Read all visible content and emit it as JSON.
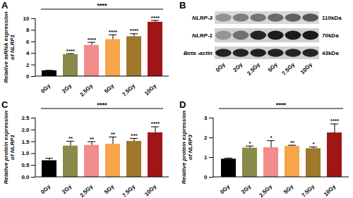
{
  "chart_data": [
    {
      "type": "bar",
      "title": "A",
      "y_label": "Relative mRNA expression\nof NLRP1",
      "categories": [
        "0Gy",
        "2Gy",
        "2.5Gy",
        "5Gy",
        "7.5Gy",
        "10Gy"
      ],
      "values": [
        1,
        3.8,
        5.4,
        6.4,
        6.9,
        9.4
      ],
      "errors": [
        0.05,
        0.15,
        0.5,
        0.8,
        0.5,
        0.3
      ],
      "colors": [
        "#000000",
        "#8a8a4a",
        "#f28b8b",
        "#f7a54a",
        "#a0782c",
        "#a01515"
      ],
      "annotations": [
        null,
        "****",
        "****",
        "****",
        "****",
        "****"
      ],
      "bracket_label": "****",
      "ylim": [
        0,
        10
      ],
      "yticks": [
        0,
        2,
        4,
        6,
        8,
        10
      ]
    },
    {
      "type": "bar",
      "title": "C",
      "y_label": "Relative protein expression\nof  NLRP1",
      "categories": [
        "0Gy",
        "2Gy",
        "2.5Gy",
        "5Gy",
        "7.5Gy",
        "10Gy"
      ],
      "values": [
        0.7,
        1.32,
        1.35,
        1.4,
        1.52,
        1.88
      ],
      "errors": [
        0.1,
        0.2,
        0.15,
        0.3,
        0.12,
        0.25
      ],
      "colors": [
        "#000000",
        "#8a8a4a",
        "#f28b8b",
        "#f7a54a",
        "#a0782c",
        "#a01515"
      ],
      "annotations": [
        null,
        "**",
        "**",
        "**",
        "***",
        "****"
      ],
      "bracket_label": "****",
      "ylim": [
        0,
        2.5
      ],
      "yticks": [
        {
          "value": 0,
          "label": "0.0"
        },
        {
          "value": 0.5,
          "label": "0.5"
        },
        {
          "value": 1,
          "label": "1.0"
        },
        {
          "value": 1.5,
          "label": "1.5"
        },
        {
          "value": 2,
          "label": "2.0"
        },
        {
          "value": 2.5,
          "label": "2.5"
        }
      ]
    },
    {
      "type": "bar",
      "title": "D",
      "y_label": "Relative protein expression\nof NLRP3",
      "categories": [
        "0Gy",
        "2Gy",
        "2.5Gy",
        "5Gy",
        "7.5Gy",
        "10Gy"
      ],
      "values": [
        0.92,
        1.48,
        1.5,
        1.57,
        1.45,
        2.25
      ],
      "errors": [
        0.05,
        0.1,
        0.35,
        0.05,
        0.08,
        0.45
      ],
      "colors": [
        "#000000",
        "#8a8a4a",
        "#f28b8b",
        "#f7a54a",
        "#a0782c",
        "#a01515"
      ],
      "annotations": [
        null,
        "*",
        "*",
        "**",
        "*",
        "****"
      ],
      "bracket_label": "****",
      "ylim": [
        0,
        3
      ],
      "yticks": [
        0,
        1,
        2,
        3
      ]
    }
  ],
  "blot": {
    "title": "B",
    "rows": [
      {
        "label": "NLRP-3",
        "size": "110kDa"
      },
      {
        "label": "NLRP-1",
        "size": "70kDa"
      },
      {
        "label": "Beta -actin",
        "size": "43kDa"
      }
    ],
    "lanes": [
      "0Gy",
      "2Gy",
      "2.5Gy",
      "5Gy",
      "7.5Gy",
      "10Gy"
    ]
  }
}
